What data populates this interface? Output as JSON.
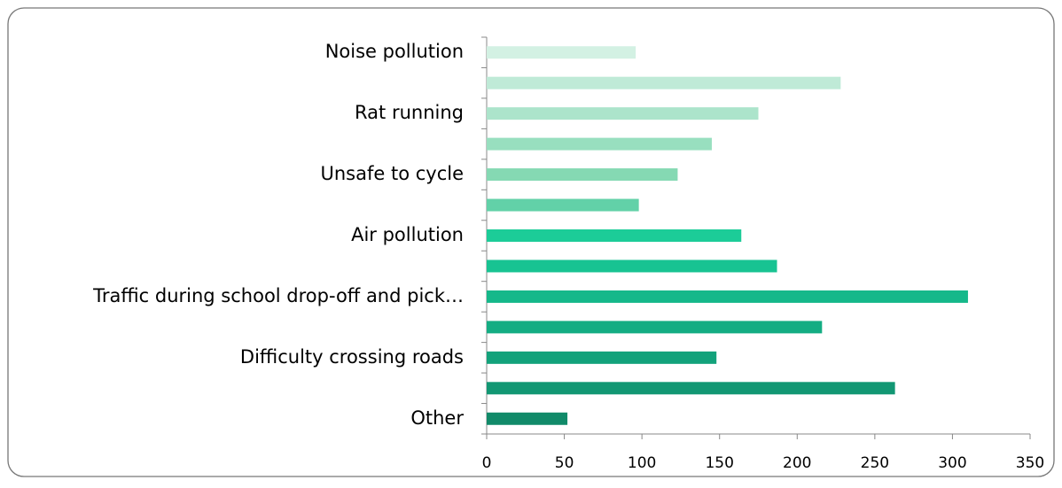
{
  "chart_data": {
    "type": "barh",
    "categories": [
      "Noise pollution",
      null,
      "Rat running",
      null,
      "Unsafe to cycle",
      null,
      "Air pollution",
      null,
      "Traffic during school drop-off and pick…",
      null,
      "Difficulty crossing roads",
      null,
      "Other"
    ],
    "values": [
      96,
      228,
      175,
      145,
      123,
      98,
      164,
      187,
      310,
      216,
      148,
      263,
      52
    ],
    "colors": [
      "#d3f1e3",
      "#bfead7",
      "#ace4cb",
      "#98dfbf",
      "#85d9b3",
      "#62d1a8",
      "#1ccc98",
      "#18c392",
      "#15b88a",
      "#14ad83",
      "#13a27b",
      "#129773",
      "#118a69"
    ],
    "xlim": [
      0,
      350
    ],
    "xticks": [
      0,
      50,
      100,
      150,
      200,
      250,
      300,
      350
    ]
  }
}
